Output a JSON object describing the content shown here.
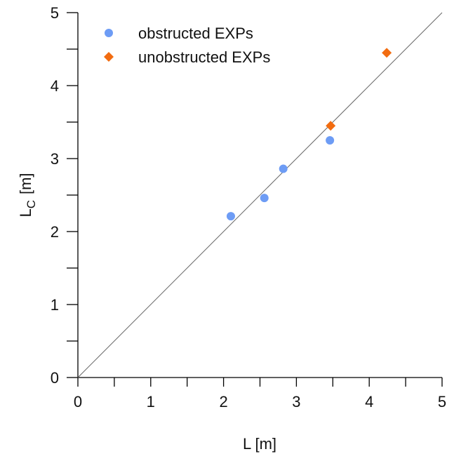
{
  "chart_data": {
    "type": "scatter",
    "xlabel": "L [m]",
    "ylabel": "L",
    "ylabel_sub": "C",
    "ylabel_unit": "[m]",
    "xlim": [
      0,
      5
    ],
    "ylim": [
      0,
      5
    ],
    "xticks": [
      0,
      1,
      2,
      3,
      4,
      5
    ],
    "yticks": [
      0,
      1,
      2,
      3,
      4,
      5
    ],
    "xminorticks": [
      0.5,
      1.5,
      2.5,
      3.5,
      4.5
    ],
    "yminorticks": [
      0.5,
      1.5,
      2.5,
      3.5,
      4.5
    ],
    "diagonal": true,
    "legend": "upper left",
    "series": [
      {
        "name": "obstructed EXPs",
        "color": "#6d9cf5",
        "marker": "circle",
        "x": [
          2.1,
          2.56,
          2.82,
          3.46
        ],
        "values": [
          2.21,
          2.46,
          2.86,
          3.25
        ]
      },
      {
        "name": "unobstructed EXPs",
        "color": "#f26c10",
        "marker": "diamond",
        "x": [
          3.47,
          4.24
        ],
        "values": [
          3.45,
          4.45
        ]
      }
    ]
  }
}
